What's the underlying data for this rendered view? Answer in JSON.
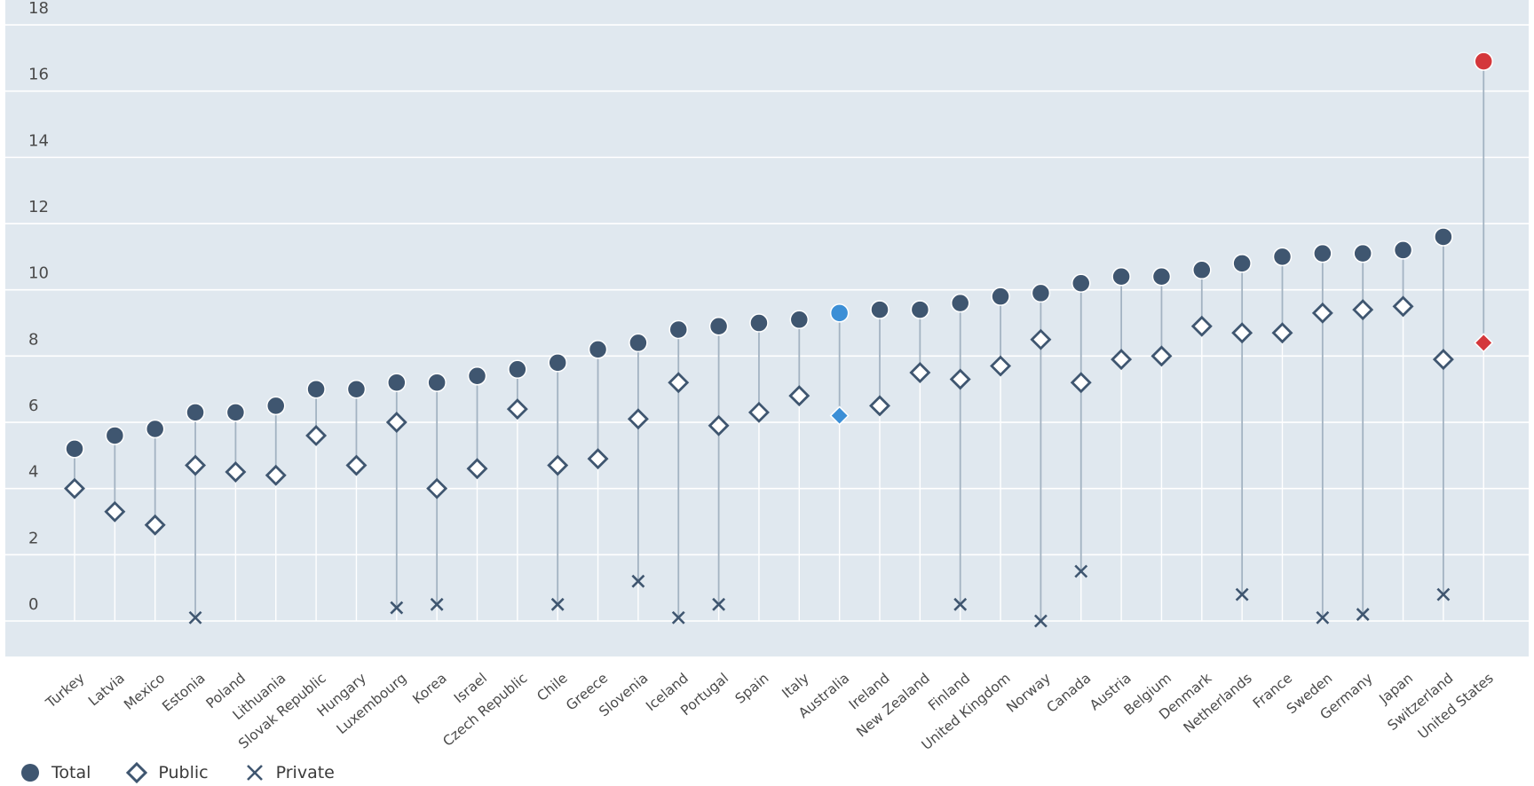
{
  "chart_data": {
    "type": "scatter",
    "title": "",
    "xlabel": "",
    "ylabel": "",
    "ylim": [
      -1,
      18
    ],
    "yticks": [
      0,
      2,
      4,
      6,
      8,
      10,
      12,
      14,
      16,
      18
    ],
    "grid": true,
    "legend_position": "bottom-left",
    "categories": [
      "Turkey",
      "Latvia",
      "Mexico",
      "Estonia",
      "Poland",
      "Lithuania",
      "Slovak Republic",
      "Hungary",
      "Luxembourg",
      "Korea",
      "Israel",
      "Czech Republic",
      "Chile",
      "Greece",
      "Slovenia",
      "Iceland",
      "Portugal",
      "Spain",
      "Italy",
      "Australia",
      "Ireland",
      "New Zealand",
      "Finland",
      "United Kingdom",
      "Norway",
      "Canada",
      "Austria",
      "Belgium",
      "Denmark",
      "Netherlands",
      "France",
      "Sweden",
      "Germany",
      "Japan",
      "Switzerland",
      "United States"
    ],
    "series": [
      {
        "name": "Total",
        "marker": "circle",
        "values": [
          5.2,
          5.6,
          5.8,
          6.3,
          6.3,
          6.5,
          7.0,
          7.0,
          7.2,
          7.2,
          7.4,
          7.6,
          7.8,
          8.2,
          8.4,
          8.8,
          8.9,
          9.0,
          9.1,
          9.3,
          9.4,
          9.4,
          9.6,
          9.8,
          9.9,
          10.2,
          10.4,
          10.4,
          10.6,
          10.8,
          11.0,
          11.1,
          11.1,
          11.2,
          11.6,
          16.9
        ]
      },
      {
        "name": "Public",
        "marker": "diamond-open",
        "values": [
          4.0,
          3.3,
          2.9,
          4.7,
          4.5,
          4.4,
          5.6,
          4.7,
          6.0,
          4.0,
          4.6,
          6.4,
          4.7,
          4.9,
          6.1,
          7.2,
          5.9,
          6.3,
          6.8,
          6.2,
          6.5,
          7.5,
          7.3,
          7.7,
          8.5,
          7.2,
          7.9,
          8.0,
          8.9,
          8.7,
          8.7,
          9.3,
          9.4,
          9.5,
          7.9,
          8.4
        ]
      },
      {
        "name": "Private",
        "marker": "x",
        "values": [
          null,
          null,
          null,
          0.1,
          null,
          null,
          null,
          null,
          0.4,
          0.5,
          null,
          null,
          0.5,
          null,
          1.2,
          0.1,
          0.5,
          null,
          null,
          null,
          null,
          null,
          0.5,
          null,
          0.0,
          1.5,
          null,
          null,
          null,
          0.8,
          null,
          0.1,
          0.2,
          null,
          0.8,
          null
        ]
      }
    ],
    "highlight": {
      "Australia": "#3c8fd6",
      "United States": "#d4373b"
    }
  },
  "colors": {
    "plot_bg": "#e0e8ef",
    "grid": "#ffffff",
    "marker": "#3f5670",
    "stem": "#a3b3c2",
    "axis_text": "#4a4a4a"
  },
  "legend": {
    "total_label": "Total",
    "public_label": "Public",
    "private_label": "Private"
  }
}
